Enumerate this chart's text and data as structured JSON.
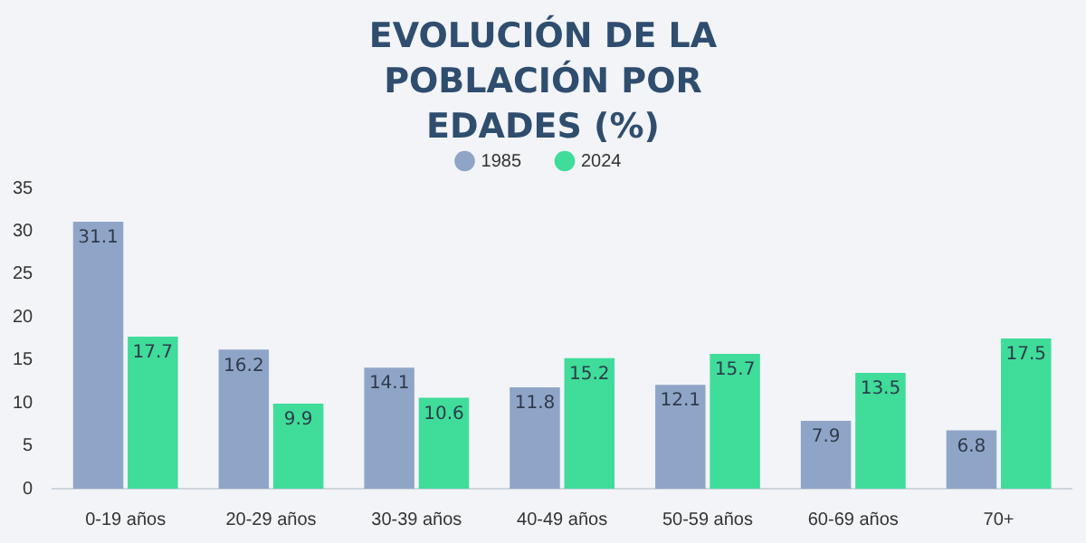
{
  "chart_data": {
    "type": "bar",
    "title": "EVOLUCIÓN DE LA POBLACIÓN POR EDADES (%)",
    "categories": [
      "0-19 años",
      "20-29 años",
      "30-39 años",
      "40-49 años",
      "50-59 años",
      "60-69 años",
      "70+"
    ],
    "series": [
      {
        "name": "1985",
        "color": "#8fa5c8",
        "values": [
          31.1,
          16.2,
          14.1,
          11.8,
          12.1,
          7.9,
          6.8
        ]
      },
      {
        "name": "2024",
        "color": "#3fdc9a",
        "values": [
          17.7,
          9.9,
          10.6,
          15.2,
          15.7,
          13.5,
          17.5
        ]
      }
    ],
    "ylim": [
      0,
      35
    ],
    "yticks": [
      0,
      5,
      10,
      15,
      20,
      25,
      30,
      35
    ],
    "grid": false,
    "legend": "top",
    "data_labels": true
  }
}
